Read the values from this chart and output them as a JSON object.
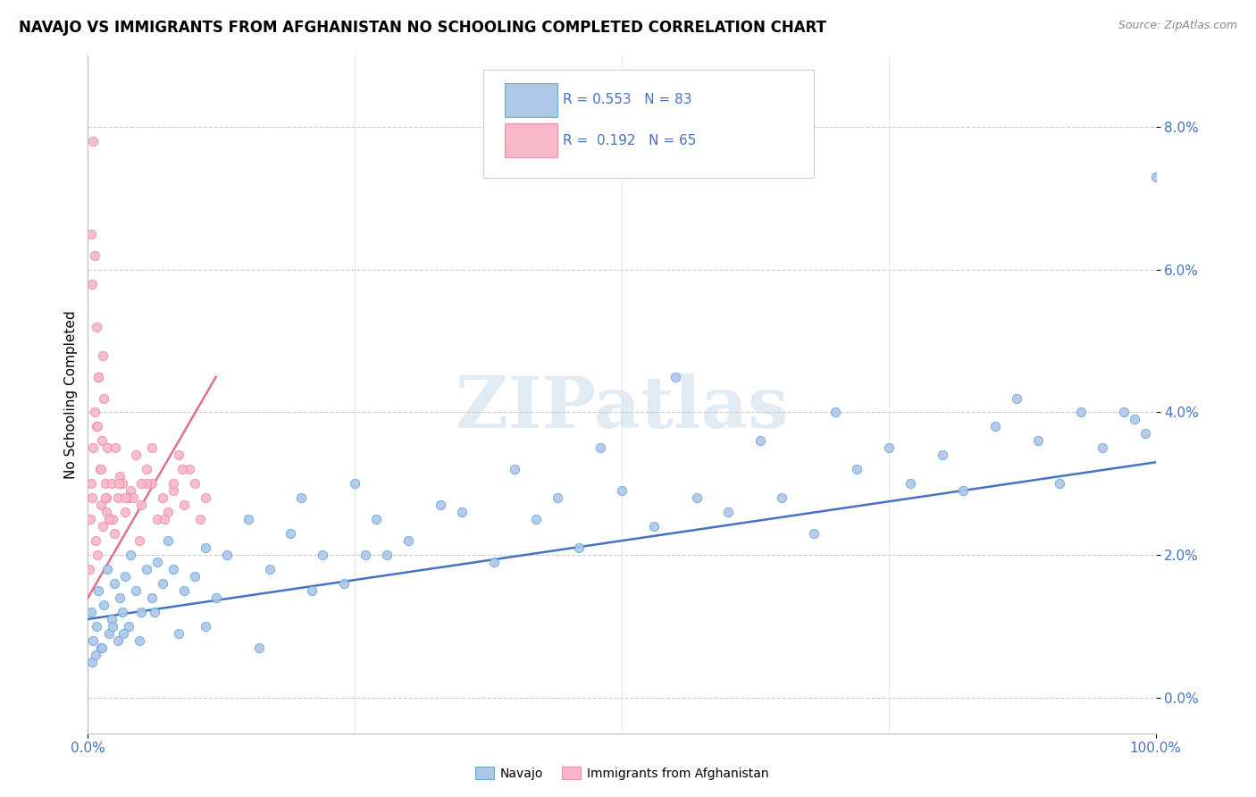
{
  "title": "NAVAJO VS IMMIGRANTS FROM AFGHANISTAN NO SCHOOLING COMPLETED CORRELATION CHART",
  "source": "Source: ZipAtlas.com",
  "ylabel": "No Schooling Completed",
  "ytick_vals": [
    0.0,
    2.0,
    4.0,
    6.0,
    8.0
  ],
  "xlim": [
    0.0,
    100.0
  ],
  "ylim": [
    -0.5,
    9.0
  ],
  "legend_blue_r": "0.553",
  "legend_blue_n": "83",
  "legend_pink_r": "0.192",
  "legend_pink_n": "65",
  "legend_labels": [
    "Navajo",
    "Immigrants from Afghanistan"
  ],
  "blue_scatter_color": "#aec6e8",
  "blue_edge_color": "#6aaad4",
  "pink_scatter_color": "#f7b8c8",
  "pink_edge_color": "#e890a8",
  "blue_line_color": "#4472c4",
  "pink_line_color": "#e07090",
  "tick_color": "#4472c4",
  "watermark_color": "#d5e3f0",
  "title_fontsize": 12,
  "tick_fontsize": 11,
  "label_fontsize": 11,
  "navajo_x": [
    0.3,
    0.5,
    0.8,
    1.0,
    1.2,
    1.5,
    1.8,
    2.0,
    2.2,
    2.5,
    2.8,
    3.0,
    3.2,
    3.5,
    3.8,
    4.0,
    4.5,
    5.0,
    5.5,
    6.0,
    6.5,
    7.0,
    7.5,
    8.0,
    9.0,
    10.0,
    11.0,
    12.0,
    13.0,
    15.0,
    17.0,
    19.0,
    20.0,
    22.0,
    24.0,
    25.0,
    27.0,
    28.0,
    30.0,
    33.0,
    35.0,
    38.0,
    40.0,
    42.0,
    44.0,
    46.0,
    48.0,
    50.0,
    53.0,
    55.0,
    57.0,
    60.0,
    63.0,
    65.0,
    68.0,
    70.0,
    72.0,
    75.0,
    77.0,
    80.0,
    82.0,
    85.0,
    87.0,
    89.0,
    91.0,
    93.0,
    95.0,
    97.0,
    98.0,
    99.0,
    100.0,
    0.4,
    0.7,
    1.3,
    2.3,
    3.3,
    4.8,
    6.2,
    8.5,
    11.0,
    16.0,
    21.0,
    26.0
  ],
  "navajo_y": [
    1.2,
    0.8,
    1.0,
    1.5,
    0.7,
    1.3,
    1.8,
    0.9,
    1.1,
    1.6,
    0.8,
    1.4,
    1.2,
    1.7,
    1.0,
    2.0,
    1.5,
    1.2,
    1.8,
    1.4,
    1.9,
    1.6,
    2.2,
    1.8,
    1.5,
    1.7,
    2.1,
    1.4,
    2.0,
    2.5,
    1.8,
    2.3,
    2.8,
    2.0,
    1.6,
    3.0,
    2.5,
    2.0,
    2.2,
    2.7,
    2.6,
    1.9,
    3.2,
    2.5,
    2.8,
    2.1,
    3.5,
    2.9,
    2.4,
    4.5,
    2.8,
    2.6,
    3.6,
    2.8,
    2.3,
    4.0,
    3.2,
    3.5,
    3.0,
    3.4,
    2.9,
    3.8,
    4.2,
    3.6,
    3.0,
    4.0,
    3.5,
    4.0,
    3.9,
    3.7,
    7.3,
    0.5,
    0.6,
    0.7,
    1.0,
    0.9,
    0.8,
    1.2,
    0.9,
    1.0,
    0.7,
    1.5,
    2.0
  ],
  "afghan_x": [
    0.1,
    0.2,
    0.3,
    0.4,
    0.5,
    0.6,
    0.7,
    0.8,
    0.9,
    1.0,
    1.1,
    1.2,
    1.3,
    1.4,
    1.5,
    1.6,
    1.7,
    1.8,
    2.0,
    2.2,
    2.5,
    2.8,
    3.0,
    3.5,
    4.0,
    4.5,
    5.0,
    5.5,
    6.0,
    6.5,
    7.0,
    7.5,
    8.0,
    8.5,
    9.0,
    9.5,
    10.0,
    10.5,
    11.0,
    0.4,
    0.8,
    1.2,
    1.6,
    2.3,
    3.2,
    4.8,
    0.6,
    1.4,
    2.6,
    3.8,
    5.5,
    7.2,
    8.8,
    0.9,
    1.7,
    2.9,
    4.2,
    6.0,
    8.0,
    0.5,
    1.0,
    2.0,
    3.5,
    5.0,
    0.3
  ],
  "afghan_y": [
    1.8,
    2.5,
    3.0,
    2.8,
    3.5,
    4.0,
    2.2,
    3.8,
    2.0,
    4.5,
    3.2,
    2.7,
    3.6,
    2.4,
    4.2,
    3.0,
    2.8,
    3.5,
    2.5,
    3.0,
    2.3,
    2.8,
    3.1,
    2.6,
    2.9,
    3.4,
    2.7,
    3.2,
    3.0,
    2.5,
    2.8,
    2.6,
    2.9,
    3.4,
    2.7,
    3.2,
    3.0,
    2.5,
    2.8,
    5.8,
    5.2,
    3.2,
    2.8,
    2.5,
    3.0,
    2.2,
    6.2,
    4.8,
    3.5,
    2.8,
    3.0,
    2.5,
    3.2,
    3.8,
    2.6,
    3.0,
    2.8,
    3.5,
    3.0,
    7.8,
    4.5,
    2.5,
    2.8,
    3.0,
    6.5
  ],
  "blue_trend_x0": 0,
  "blue_trend_x1": 100,
  "blue_trend_y0": 1.1,
  "blue_trend_y1": 3.3,
  "pink_trend_x0": 0,
  "pink_trend_x1": 12,
  "pink_trend_y0": 1.4,
  "pink_trend_y1": 4.5
}
